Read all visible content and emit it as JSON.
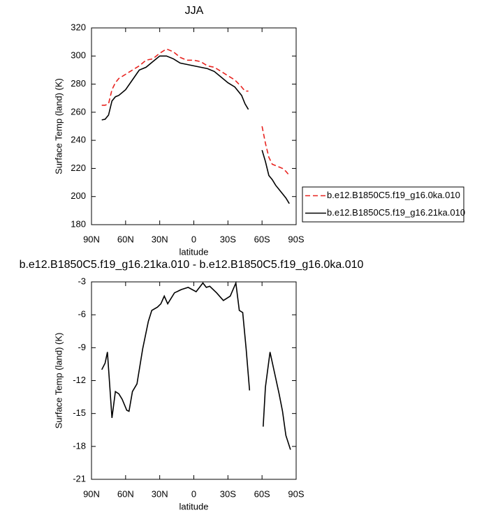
{
  "chart_data": [
    {
      "type": "line",
      "title": "JJA",
      "xlabel": "latitude",
      "ylabel": "Surface Temp (land) (K)",
      "x": [
        81,
        78,
        75,
        72,
        69,
        66,
        60,
        54,
        48,
        42,
        36,
        30,
        24,
        18,
        12,
        6,
        0,
        -6,
        -12,
        -18,
        -24,
        -30,
        -36,
        -42,
        -45,
        -48,
        -51,
        -60,
        -63,
        -66,
        -69,
        -72,
        -75,
        -78,
        -81,
        -84
      ],
      "series": [
        {
          "name": "b.e12.B1850C5.f19_g16.0ka.010",
          "color": "#e8231f",
          "dashed": true,
          "values": [
            265,
            265,
            266,
            276,
            281,
            284,
            287,
            290,
            293,
            297,
            298,
            302,
            305,
            303,
            299,
            297,
            297,
            296,
            293,
            292,
            289,
            286,
            283,
            278,
            275,
            275,
            null,
            250,
            238,
            228,
            223,
            222,
            221,
            220,
            218,
            215
          ]
        },
        {
          "name": "b.e12.B1850C5.f19_g16.21ka.010",
          "color": "#000000",
          "dashed": false,
          "values": [
            254.5,
            255,
            258,
            268,
            271,
            272,
            276,
            283,
            290,
            292,
            296,
            300,
            300,
            298,
            295,
            294,
            293,
            292,
            291,
            289,
            285,
            281,
            278,
            272,
            266,
            262,
            null,
            233,
            225,
            215,
            212,
            208,
            205,
            202,
            199,
            195
          ]
        }
      ],
      "xlim": [
        90,
        -90
      ],
      "xticks": [
        {
          "value": 90,
          "label": "90N"
        },
        {
          "value": 60,
          "label": "60N"
        },
        {
          "value": 30,
          "label": "30N"
        },
        0,
        {
          "value": -30,
          "label": "30S"
        },
        {
          "value": -60,
          "label": "60S"
        },
        {
          "value": -90,
          "label": "90S"
        }
      ],
      "ylim": [
        180,
        320
      ],
      "yticks": [
        180,
        200,
        220,
        240,
        260,
        280,
        300,
        320
      ],
      "legend": "right"
    },
    {
      "type": "line",
      "title": "b.e12.B1850C5.f19_g16.21ka.010 - b.e12.B1850C5.f19_g16.0ka.010",
      "xlabel": "latitude",
      "ylabel": "Surface Temp (land) (K)",
      "x": [
        81,
        78,
        76,
        72,
        69,
        66,
        63,
        59,
        57,
        54,
        50,
        45,
        40,
        37,
        32,
        29,
        26,
        23,
        17,
        11,
        5,
        -2,
        -8,
        -11,
        -14,
        -20,
        -26,
        -32,
        -37,
        -40,
        -43,
        -46,
        -49,
        -55,
        -61,
        -63,
        -67,
        -71,
        -75,
        -78,
        -81,
        -85
      ],
      "series": [
        {
          "name": "difference",
          "color": "#000000",
          "dashed": false,
          "values": [
            -11,
            -10.4,
            -9.4,
            -15.4,
            -13,
            -13.2,
            -13.7,
            -14.7,
            -14.8,
            -13,
            -12.3,
            -9.1,
            -6.6,
            -5.6,
            -5.3,
            -5,
            -4.3,
            -5,
            -4,
            -3.7,
            -3.5,
            -3.9,
            -3.1,
            -3.5,
            -3.4,
            -4,
            -4.7,
            -4.3,
            -3.1,
            -5.6,
            -5.8,
            -9.1,
            -12.9,
            null,
            -16.2,
            -12.6,
            -9.4,
            -11.3,
            -13.2,
            -14.8,
            -17,
            -18.3
          ]
        }
      ],
      "xlim": [
        90,
        -90
      ],
      "xticks": [
        {
          "value": 90,
          "label": "90N"
        },
        {
          "value": 60,
          "label": "60N"
        },
        {
          "value": 30,
          "label": "30N"
        },
        0,
        {
          "value": -30,
          "label": "30S"
        },
        {
          "value": -60,
          "label": "60S"
        },
        {
          "value": -90,
          "label": "90S"
        }
      ],
      "ylim": [
        -21,
        -3
      ],
      "yticks": [
        -21,
        -18,
        -15,
        -12,
        -9,
        -6,
        -3
      ]
    }
  ]
}
